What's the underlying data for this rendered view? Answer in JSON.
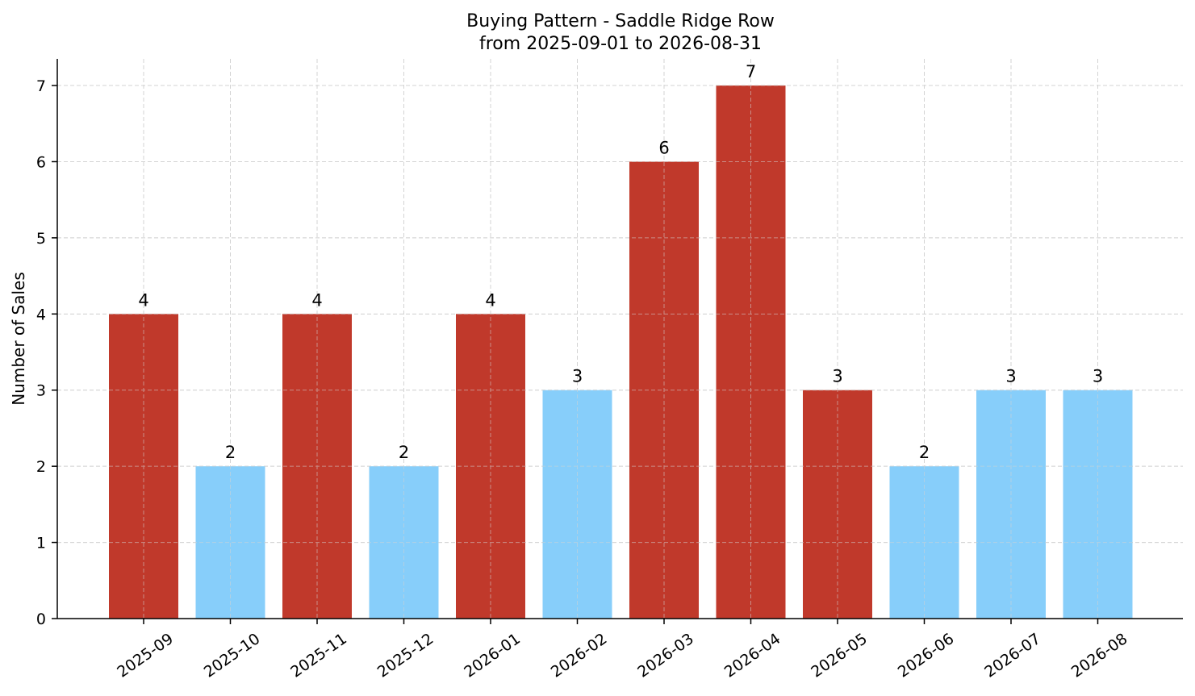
{
  "chart_data": {
    "type": "bar",
    "title": "Buying Pattern - Saddle Ridge Row",
    "subtitle": "from 2025-09-01 to 2026-08-31",
    "xlabel": "",
    "ylabel": "Number of Sales",
    "categories": [
      "2025-09",
      "2025-10",
      "2025-11",
      "2025-12",
      "2026-01",
      "2026-02",
      "2026-03",
      "2026-04",
      "2026-05",
      "2026-06",
      "2026-07",
      "2026-08"
    ],
    "values": [
      4,
      2,
      4,
      2,
      4,
      3,
      6,
      7,
      3,
      2,
      3,
      3
    ],
    "bar_colors": [
      "#c0392b",
      "#87cefa",
      "#c0392b",
      "#87cefa",
      "#c0392b",
      "#87cefa",
      "#c0392b",
      "#c0392b",
      "#c0392b",
      "#87cefa",
      "#87cefa",
      "#87cefa"
    ],
    "ylim": [
      0,
      7.35
    ],
    "yticks": [
      0,
      1,
      2,
      3,
      4,
      5,
      6,
      7
    ],
    "grid": true,
    "legend": "none"
  }
}
